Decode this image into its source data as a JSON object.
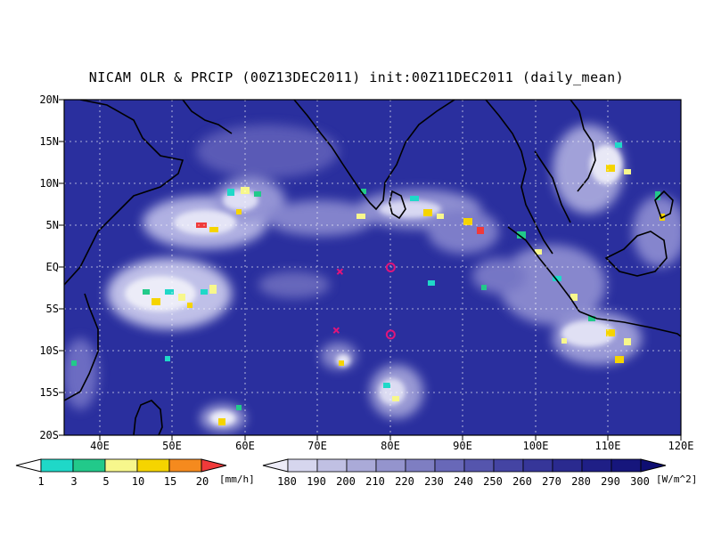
{
  "title": "NICAM OLR & PRCIP (00Z13DEC2011) init:00Z11DEC2011 (daily_mean)",
  "map": {
    "lat_labels": [
      "20N",
      "15N",
      "10N",
      "5N",
      "EQ",
      "5S",
      "10S",
      "15S",
      "20S"
    ],
    "lon_labels": [
      "40E",
      "50E",
      "60E",
      "70E",
      "80E",
      "90E",
      "100E",
      "110E",
      "120E"
    ],
    "extent": {
      "lon_min": 35,
      "lon_max": 120,
      "lat_min": -20,
      "lat_max": 20
    },
    "gridlines": true,
    "ocean_color": "#2a2f9e",
    "markers": [
      {
        "type": "circle",
        "lon": 80,
        "lat": 0,
        "color": "#e0157a"
      },
      {
        "type": "circle",
        "lon": 80,
        "lat": -8,
        "color": "#e0157a"
      },
      {
        "type": "cross",
        "lon": 73,
        "lat": -0.5,
        "color": "#e0157a"
      },
      {
        "type": "cross",
        "lon": 72.5,
        "lat": -7.5,
        "color": "#e0157a"
      }
    ]
  },
  "precip_colorbar": {
    "labels": [
      "1",
      "3",
      "5",
      "10",
      "15",
      "20"
    ],
    "unit": "[mm/h]",
    "colors": [
      "#1fd8c8",
      "#22c98a",
      "#f7f78c",
      "#f5d400",
      "#f58a1e",
      "#f03a3a"
    ]
  },
  "olr_colorbar": {
    "labels": [
      "180",
      "190",
      "200",
      "210",
      "220",
      "230",
      "240",
      "250",
      "260",
      "270",
      "280",
      "290",
      "300"
    ],
    "unit": "[W/m^2]",
    "colors": [
      "#ecebf7",
      "#d6d6ee",
      "#c0c0e3",
      "#aaaad8",
      "#9494cd",
      "#7e7ec2",
      "#6868b8",
      "#5555ad",
      "#4444a3",
      "#363699",
      "#2a2a8f",
      "#1f1f86",
      "#16167c",
      "#0e0e72"
    ]
  }
}
